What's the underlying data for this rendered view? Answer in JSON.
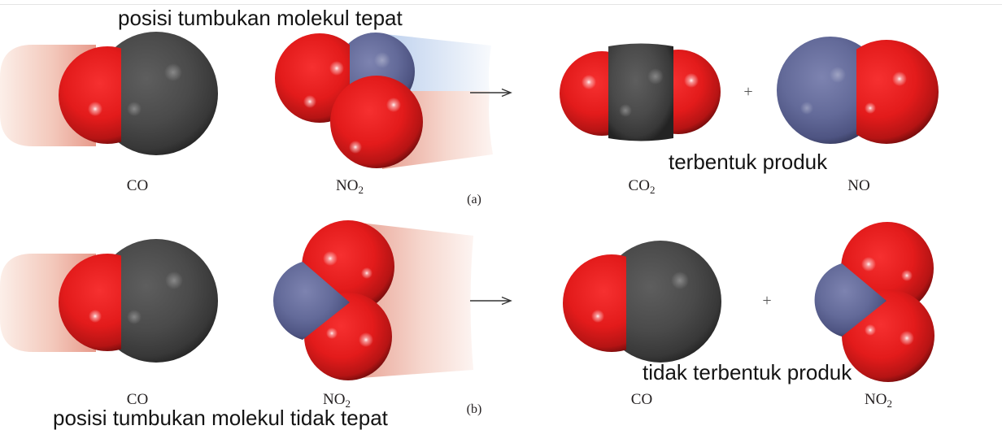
{
  "annotations": {
    "top_caption": "posisi tumbukan molekul tepat",
    "product_formed": "terbentuk produk",
    "product_not_formed": "tidak terbentuk produk",
    "bottom_caption": "posisi tumbukan molekul tidak tepat"
  },
  "panel_a": {
    "label": "(a)",
    "reactants": [
      {
        "text": "CO"
      },
      {
        "text": "NO",
        "sub": "2"
      }
    ],
    "plus": "+",
    "products": [
      {
        "text": "CO",
        "sub": "2"
      },
      {
        "text": "NO"
      }
    ]
  },
  "panel_b": {
    "label": "(b)",
    "reactants": [
      {
        "text": "CO"
      },
      {
        "text": "NO",
        "sub": "2"
      }
    ],
    "plus": "+",
    "products": [
      {
        "text": "CO"
      },
      {
        "text": "NO",
        "sub": "2"
      }
    ]
  },
  "colors": {
    "oxygen": "#e31b1b",
    "carbon": "#4a4a4a",
    "nitrogen": "#636a99"
  }
}
